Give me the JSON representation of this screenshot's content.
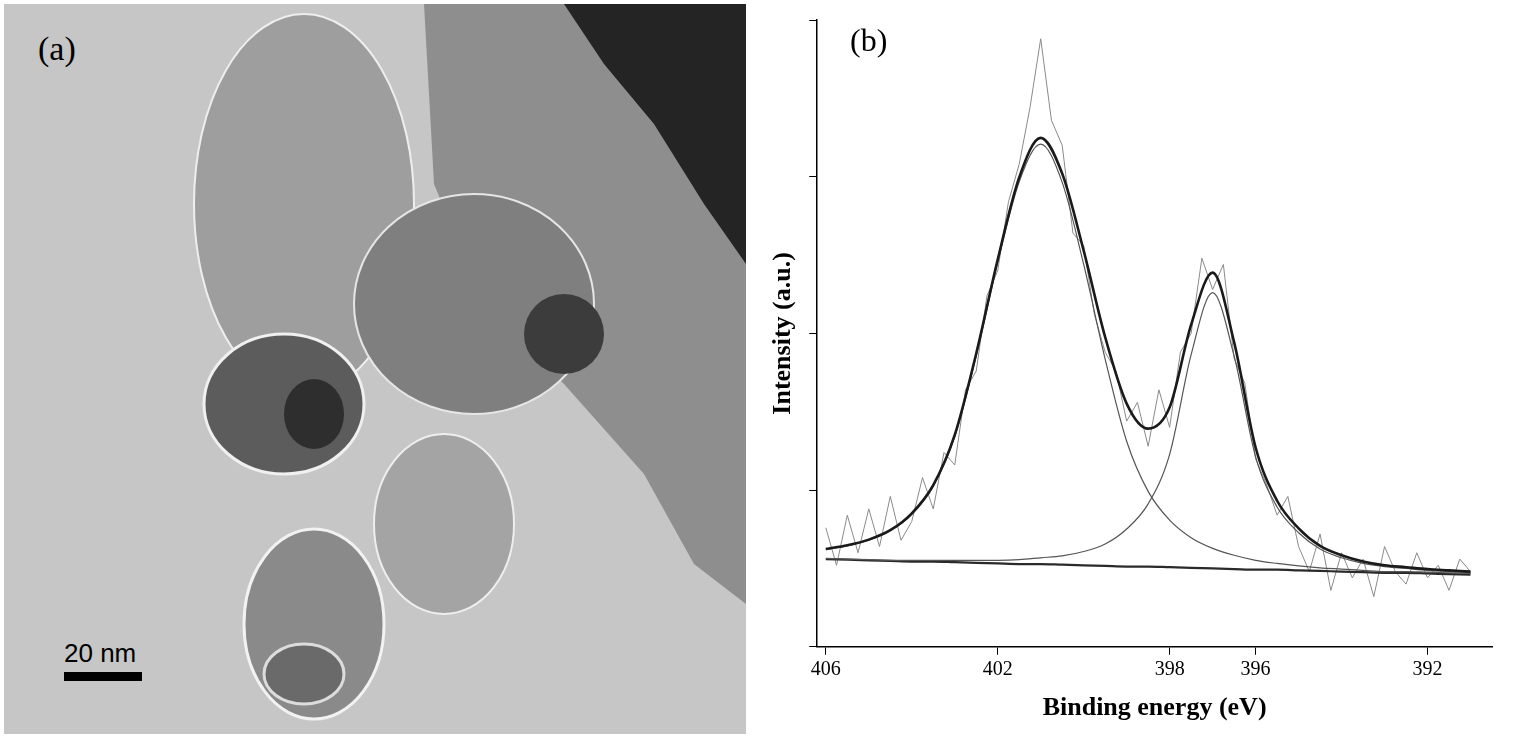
{
  "panel_a": {
    "label": "(a)",
    "scale_bar": "20 nm"
  },
  "panel_b": {
    "label": "(b)"
  },
  "chart_data": {
    "type": "line",
    "x_label": "Binding energy (eV)",
    "y_label": "Intensity (a.u.)",
    "xlim": [
      406.2,
      390.5
    ],
    "xticks": [
      406,
      402,
      398,
      396,
      392
    ],
    "ylim": [
      0,
      100
    ],
    "yticks": [
      0,
      25,
      50,
      75,
      100
    ],
    "tick_labels": "x",
    "grid": false,
    "series": [
      {
        "color": "#8a8a8a",
        "x": [
          406,
          405.75,
          405.5,
          405.25,
          405,
          404.75,
          404.5,
          404.25,
          404,
          403.75,
          403.5,
          403.25,
          403,
          402.75,
          402.5,
          402.25,
          402,
          401.75,
          401.5,
          401.25,
          401,
          400.75,
          400.5,
          400.25,
          400,
          399.75,
          399.5,
          399.25,
          399,
          398.75,
          398.5,
          398.25,
          398,
          397.75,
          397.5,
          397.25,
          397,
          396.75,
          396.5,
          396.25,
          396,
          395.75,
          395.5,
          395.25,
          395,
          394.75,
          394.5,
          394.25,
          394,
          393.75,
          393.5,
          393.25,
          393,
          392.75,
          392.5,
          392.25,
          392,
          391.75,
          391.5,
          391.25,
          391
        ],
        "values": [
          19,
          13,
          21,
          15,
          22,
          16,
          24,
          17,
          20,
          27,
          22,
          31,
          29,
          41,
          44,
          56,
          60,
          71,
          77,
          86,
          97,
          84,
          80,
          66,
          64,
          53,
          47,
          44,
          36,
          39,
          32,
          41,
          35,
          47,
          50,
          62,
          57,
          61,
          46,
          42,
          30,
          26,
          21,
          24,
          16,
          12,
          18,
          9,
          15,
          11,
          14,
          8,
          16,
          12,
          10,
          15,
          11,
          13,
          9,
          14,
          12
        ]
      },
      {
        "color": "#1a1a1a",
        "x": [
          406,
          405.5,
          405,
          404.5,
          404,
          403.5,
          403,
          402.5,
          402,
          401.5,
          401,
          400.5,
          400,
          399.5,
          399,
          398.5,
          398,
          397.5,
          397,
          396.5,
          396,
          395.5,
          395,
          394.5,
          394,
          393.5,
          393,
          392.5,
          392,
          391.5,
          391
        ],
        "values": [
          15.6,
          16.2,
          17.1,
          18.6,
          21.3,
          25.8,
          33.8,
          46.8,
          61.8,
          74.9,
          81.2,
          75.5,
          63.2,
          49.4,
          38.8,
          34.8,
          38.2,
          51.4,
          59.7,
          48.6,
          31.8,
          23.3,
          18.9,
          16.1,
          14.6,
          13.6,
          13.0,
          12.7,
          12.4,
          12.2,
          12.0
        ]
      },
      {
        "color": "#555555",
        "x": [
          406,
          405.5,
          405,
          404.5,
          404,
          403.5,
          403,
          402.5,
          402,
          401.5,
          401,
          400.5,
          400,
          399.5,
          399,
          398.5,
          398,
          397.5,
          397,
          396.5,
          396,
          395.5,
          395,
          394.5,
          394,
          393.5,
          393,
          392.5,
          392,
          391.5,
          391
        ],
        "values": [
          15.5,
          16.1,
          17.0,
          18.5,
          21.1,
          25.6,
          33.5,
          46.4,
          61.3,
          74.2,
          80.2,
          74.1,
          61.0,
          45.9,
          32.8,
          24.8,
          20.2,
          17.4,
          15.7,
          14.6,
          13.8,
          13.3,
          12.9,
          12.6,
          12.4,
          12.2,
          12.0,
          12.0,
          11.9,
          11.8,
          11.7
        ]
      },
      {
        "color": "#555555",
        "x": [
          406,
          405.5,
          405,
          404.5,
          404,
          403.5,
          403,
          402.5,
          402,
          401.5,
          401,
          400.5,
          400,
          399.5,
          399,
          398.5,
          398,
          397.5,
          397,
          396.5,
          396,
          395.5,
          395,
          394.5,
          394,
          393.5,
          393,
          392.5,
          392,
          391.5,
          391
        ],
        "values": [
          14.1,
          14.0,
          13.9,
          13.8,
          13.8,
          13.8,
          13.8,
          13.8,
          13.8,
          13.9,
          14.2,
          14.5,
          15.2,
          16.4,
          18.8,
          22.8,
          30.7,
          46.6,
          56.5,
          46.4,
          30.3,
          22.3,
          18.2,
          15.6,
          14.2,
          13.3,
          12.8,
          12.5,
          12.2,
          12.0,
          11.8
        ]
      },
      {
        "color": "#2a2a2a",
        "x": [
          406,
          405.5,
          405,
          404.5,
          404,
          403.5,
          403,
          402.5,
          402,
          401.5,
          401,
          400.5,
          400,
          399.5,
          399,
          398.5,
          398,
          397.5,
          397,
          396.5,
          396,
          395.5,
          395,
          394.5,
          394,
          393.5,
          393,
          392.5,
          392,
          391.5,
          391
        ],
        "values": [
          14.0,
          13.9,
          13.8,
          13.7,
          13.6,
          13.6,
          13.5,
          13.4,
          13.3,
          13.2,
          13.2,
          13.1,
          13.0,
          12.9,
          12.8,
          12.8,
          12.7,
          12.6,
          12.5,
          12.4,
          12.3,
          12.3,
          12.2,
          12.1,
          12.0,
          11.9,
          11.8,
          11.8,
          11.7,
          11.6,
          11.5
        ]
      }
    ]
  }
}
